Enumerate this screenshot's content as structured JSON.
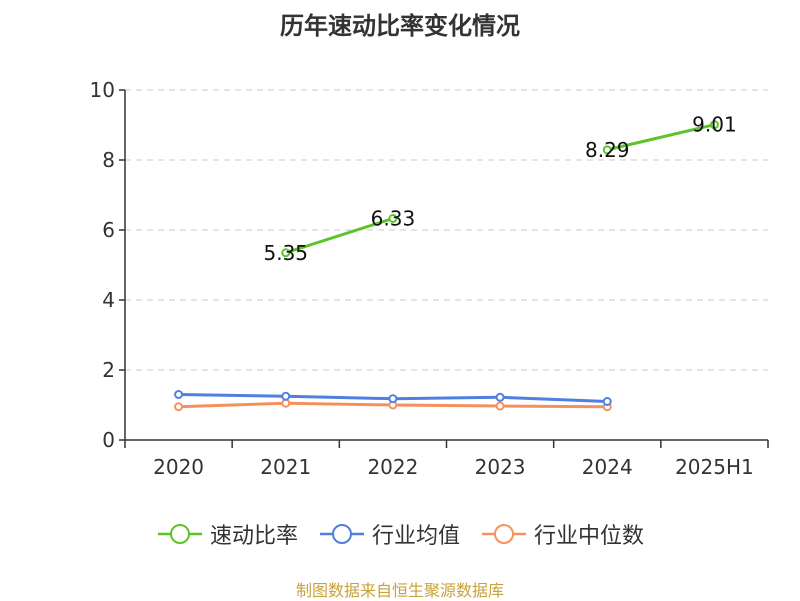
{
  "chart_data": {
    "type": "line",
    "title": "历年速动比率变化情况",
    "categories": [
      "2020",
      "2021",
      "2022",
      "2023",
      "2024",
      "2025H1"
    ],
    "ylim": [
      0,
      10
    ],
    "yticks": [
      "0",
      "2",
      "4",
      "6",
      "8",
      "10"
    ],
    "grid": true,
    "legend_position": "bottom",
    "series": [
      {
        "name": "速动比率",
        "color": "#5cc42a",
        "values": [
          null,
          5.35,
          6.33,
          null,
          8.29,
          9.01
        ],
        "labels": [
          "",
          "5.35",
          "6.33",
          "",
          "8.29",
          "9.01"
        ]
      },
      {
        "name": "行业均值",
        "color": "#4f7fe0",
        "values": [
          1.3,
          1.25,
          1.18,
          1.22,
          1.1,
          null
        ]
      },
      {
        "name": "行业中位数",
        "color": "#f5915e",
        "values": [
          0.95,
          1.05,
          1.0,
          0.97,
          0.95,
          null
        ]
      }
    ]
  },
  "source": "制图数据来自恒生聚源数据库"
}
